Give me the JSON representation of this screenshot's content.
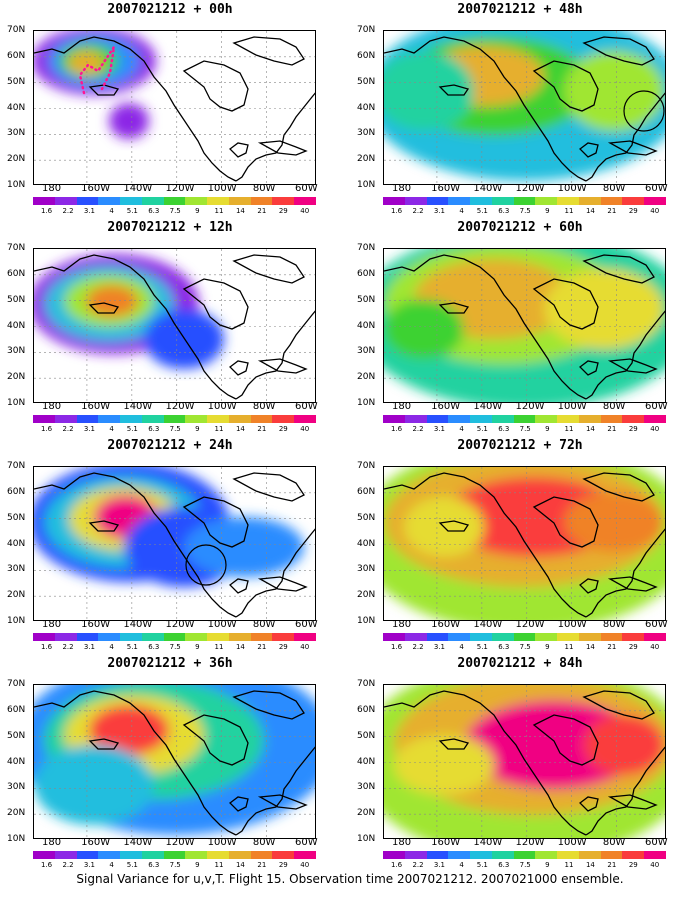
{
  "panels": [
    {
      "title": "2007021212 + 00h",
      "intensity": 0.25,
      "storm": "00",
      "circle": null
    },
    {
      "title": "2007021212 + 48h",
      "intensity": 0.7,
      "storm": "48",
      "circle": "east"
    },
    {
      "title": "2007021212 + 12h",
      "intensity": 0.35,
      "storm": "12",
      "circle": null
    },
    {
      "title": "2007021212 + 60h",
      "intensity": 0.8,
      "storm": "60",
      "circle": null
    },
    {
      "title": "2007021212 + 24h",
      "intensity": 0.5,
      "storm": "24",
      "circle": "gulf"
    },
    {
      "title": "2007021212 + 72h",
      "intensity": 0.9,
      "storm": "72",
      "circle": null
    },
    {
      "title": "2007021212 + 36h",
      "intensity": 0.6,
      "storm": "36",
      "circle": null
    },
    {
      "title": "2007021212 + 84h",
      "intensity": 1.0,
      "storm": "84",
      "circle": null
    }
  ],
  "lat_labels": [
    "70N",
    "60N",
    "50N",
    "40N",
    "30N",
    "20N",
    "10N"
  ],
  "lon_labels": [
    "180",
    "160W",
    "140W",
    "120W",
    "100W",
    "80W",
    "60W"
  ],
  "colorbar": {
    "colors": [
      "#a000c8",
      "#8c28e6",
      "#2850ff",
      "#2a8cff",
      "#20bede",
      "#20d2a0",
      "#3cd232",
      "#a0e632",
      "#e6dc32",
      "#e6af2d",
      "#f08228",
      "#fa3c3c",
      "#f00082"
    ],
    "labels": [
      "1.6",
      "2.2",
      "3.1",
      "4",
      "5.1",
      "6.3",
      "7.5",
      "9",
      "11",
      "14",
      "21",
      "29",
      "40"
    ]
  },
  "caption": "Signal Variance for u,v,T. Flight 15. Observation time 2007021212. 2007021000 ensemble."
}
